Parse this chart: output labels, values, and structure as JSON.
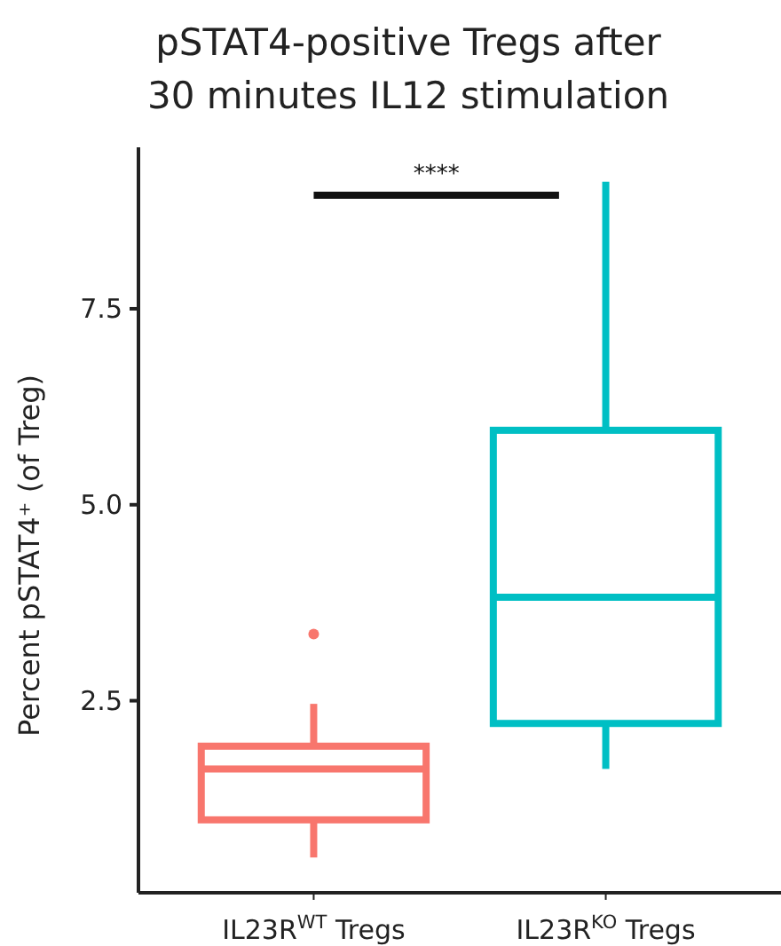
{
  "chart_data": {
    "type": "box",
    "title": "pSTAT4-positive Tregs after 30 minutes IL12 stimulation",
    "ylabel": "Percent pSTAT4⁺ (of Treg)",
    "categories": [
      "IL23R$^{WT}$ Tregs",
      "IL23R$^{KO}$ Tregs"
    ],
    "colors": [
      "#f8766d",
      "#00bfc4"
    ],
    "boxes": [
      {
        "low": 0.5,
        "q1": 0.98,
        "median": 1.63,
        "q3": 1.92,
        "high": 2.46,
        "outliers": [
          3.35
        ]
      },
      {
        "low": 1.63,
        "q1": 2.21,
        "median": 3.82,
        "q3": 5.95,
        "high": 9.12
      }
    ],
    "ylim": [
      0.05,
      9.56
    ],
    "yticks": [
      2.5,
      {
        "value": 5,
        "label": "5.0"
      },
      7.5
    ],
    "annotations": [
      "****"
    ]
  }
}
